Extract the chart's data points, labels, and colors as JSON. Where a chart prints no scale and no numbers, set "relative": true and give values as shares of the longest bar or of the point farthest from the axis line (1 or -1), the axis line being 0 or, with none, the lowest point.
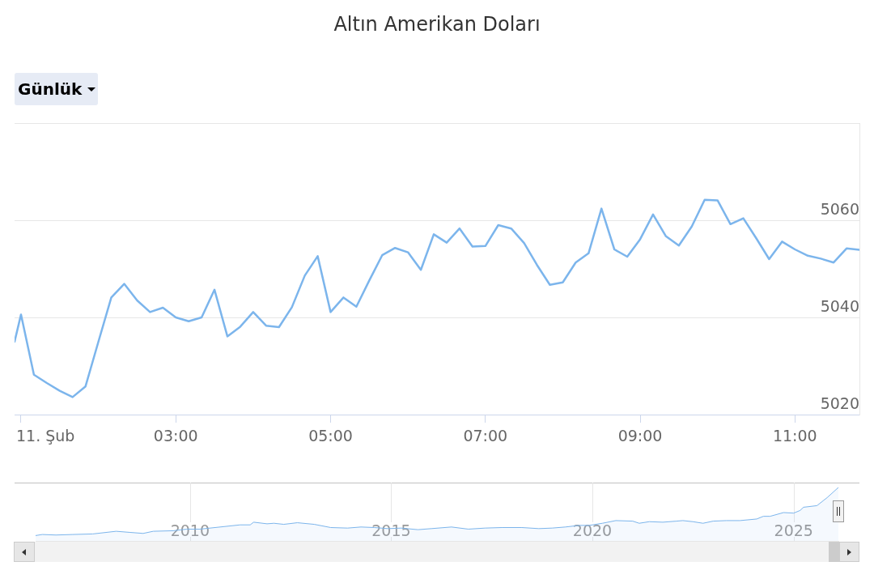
{
  "chart_data": [
    {
      "type": "line",
      "title": "Altın Amerikan Doları",
      "annotations": [
        "Günlük"
      ],
      "color": "#7cb5ec",
      "x": [
        "--02-11T00:55",
        "--02-11T01:00",
        "--02-11T01:10",
        "--02-11T01:20",
        "--02-11T01:30",
        "--02-11T01:40",
        "--02-11T01:50",
        "--02-11T02:00",
        "--02-11T02:10",
        "--02-11T02:20",
        "--02-11T02:30",
        "--02-11T02:40",
        "--02-11T02:50",
        "--02-11T03:00",
        "--02-11T03:10",
        "--02-11T03:20",
        "--02-11T03:30",
        "--02-11T03:40",
        "--02-11T03:50",
        "--02-11T04:00",
        "--02-11T04:10",
        "--02-11T04:20",
        "--02-11T04:30",
        "--02-11T04:40",
        "--02-11T04:50",
        "--02-11T05:00",
        "--02-11T05:10",
        "--02-11T05:20",
        "--02-11T05:30",
        "--02-11T05:40",
        "--02-11T05:50",
        "--02-11T06:00",
        "--02-11T06:10",
        "--02-11T06:20",
        "--02-11T06:30",
        "--02-11T06:40",
        "--02-11T06:50",
        "--02-11T07:00",
        "--02-11T07:10",
        "--02-11T07:20",
        "--02-11T07:30",
        "--02-11T07:40",
        "--02-11T07:50",
        "--02-11T08:00",
        "--02-11T08:10",
        "--02-11T08:20",
        "--02-11T08:30",
        "--02-11T08:40",
        "--02-11T08:50",
        "--02-11T09:00",
        "--02-11T09:10",
        "--02-11T09:20",
        "--02-11T09:30",
        "--02-11T09:40",
        "--02-11T09:50",
        "--02-11T10:00",
        "--02-11T10:10",
        "--02-11T10:20",
        "--02-11T10:30",
        "--02-11T10:40",
        "--02-11T10:50",
        "--02-11T11:00",
        "--02-11T11:10",
        "--02-11T11:20",
        "--02-11T11:30",
        "--02-11T11:40",
        "--02-11T11:50"
      ],
      "values": [
        5035,
        5040.6,
        5028.2,
        5026.5,
        5024.9,
        5023.6,
        5025.8,
        5035,
        5044.1,
        5046.9,
        5043.5,
        5041.1,
        5042,
        5040,
        5039.2,
        5040,
        5045.7,
        5036.1,
        5038.1,
        5041.1,
        5038.3,
        5038,
        5042.1,
        5048.6,
        5052.6,
        5041.1,
        5044.1,
        5042.2,
        5047.6,
        5052.8,
        5054.3,
        5053.4,
        5049.8,
        5057.1,
        5055.4,
        5058.3,
        5054.6,
        5054.7,
        5059,
        5058.3,
        5055.3,
        5050.8,
        5046.7,
        5047.2,
        5051.3,
        5053.2,
        5062.4,
        5054,
        5052.5,
        5056.1,
        5061.2,
        5056.7,
        5054.8,
        5058.7,
        5064.2,
        5064.1,
        5059.2,
        5060.4,
        5056.3,
        5052,
        5055.6,
        5054,
        5052.7,
        5052.1,
        5051.3,
        5054.2,
        5053.9
      ],
      "xlim": [
        "--02-11T00:55",
        "--02-11T11:50"
      ],
      "xticks": [
        {
          "value": "--02-11T01:00",
          "label": "11. Şub"
        },
        {
          "value": "--02-11T03:00",
          "label": "03:00"
        },
        {
          "value": "--02-11T05:00",
          "label": "05:00"
        },
        {
          "value": "--02-11T07:00",
          "label": "07:00"
        },
        {
          "value": "--02-11T09:00",
          "label": "09:00"
        },
        {
          "value": "--02-11T11:00",
          "label": "11:00"
        }
      ],
      "ylim": [
        5020,
        5080
      ],
      "yticks": [
        5020,
        5040,
        5060,
        {
          "value": 5080,
          "label": null
        }
      ],
      "grid": "y"
    },
    {
      "type": "area",
      "relative": true,
      "color": "#7cb5ec",
      "x": [
        "2006-03",
        "2006-05",
        "2006-09",
        "2007-02",
        "2007-08",
        "2008-03",
        "2008-07",
        "2008-11",
        "2009-02",
        "2009-08",
        "2009-12",
        "2010-04",
        "2010-10",
        "2011-04",
        "2011-07",
        "2011-08",
        "2011-12",
        "2012-02",
        "2012-05",
        "2012-09",
        "2013-02",
        "2013-07",
        "2013-12",
        "2014-04",
        "2014-08",
        "2014-12",
        "2015-04",
        "2015-09",
        "2016-01",
        "2016-07",
        "2016-12",
        "2017-05",
        "2017-10",
        "2018-04",
        "2018-09",
        "2019-01",
        "2019-05",
        "2019-09",
        "2019-12",
        "2020-04",
        "2020-08",
        "2021-01",
        "2021-03",
        "2021-06",
        "2021-10",
        "2022-02",
        "2022-04",
        "2022-07",
        "2022-10",
        "2023-01",
        "2023-05",
        "2023-09",
        "2024-02",
        "2024-04",
        "2024-06",
        "2024-10",
        "2025-01",
        "2025-03",
        "2025-04",
        "2025-08",
        "2025-10",
        "2025-11",
        "2026-02-11"
      ],
      "values": [
        0.1,
        0.12,
        0.11,
        0.12,
        0.13,
        0.18,
        0.16,
        0.14,
        0.18,
        0.19,
        0.22,
        0.22,
        0.26,
        0.3,
        0.3,
        0.35,
        0.32,
        0.33,
        0.31,
        0.34,
        0.31,
        0.25,
        0.24,
        0.26,
        0.25,
        0.23,
        0.24,
        0.21,
        0.23,
        0.26,
        0.22,
        0.24,
        0.25,
        0.25,
        0.23,
        0.24,
        0.26,
        0.29,
        0.29,
        0.33,
        0.38,
        0.37,
        0.33,
        0.36,
        0.35,
        0.37,
        0.38,
        0.36,
        0.33,
        0.37,
        0.38,
        0.38,
        0.41,
        0.46,
        0.46,
        0.53,
        0.52,
        0.57,
        0.63,
        0.66,
        0.76,
        0.81,
        1
      ],
      "xlim": [
        "2006-03",
        "2026-02-11"
      ],
      "xticks": [
        {
          "value": "2010",
          "label": "2010"
        },
        {
          "value": "2015",
          "label": "2015"
        },
        {
          "value": "2020",
          "label": "2020"
        },
        {
          "value": "2025",
          "label": "2025"
        }
      ],
      "grid": "x",
      "tick_labels": "x"
    }
  ]
}
